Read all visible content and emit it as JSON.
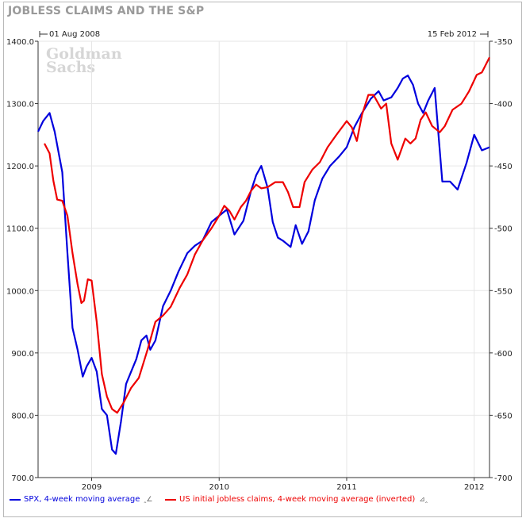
{
  "chart_data": {
    "type": "line",
    "title": "JOBLESS CLAIMS AND THE S&P",
    "watermark": "Goldman Sachs",
    "date_range": {
      "start_label": "01 Aug 2008",
      "end_label": "15 Feb 2012"
    },
    "x_ticks": [
      "2009",
      "2010",
      "2011",
      "2012"
    ],
    "left_axis": {
      "lim": [
        700,
        1400
      ],
      "ticks": [
        "700.0",
        "800.0",
        "900.0",
        "1000.0",
        "1100.0",
        "1200.0",
        "1300.0",
        "1400.0"
      ]
    },
    "right_axis": {
      "lim": [
        -700,
        -350
      ],
      "ticks": [
        "-350",
        "-400",
        "-450",
        "-500",
        "-550",
        "-600",
        "-650",
        "-700"
      ]
    },
    "grid": true,
    "legend_position": "bottom",
    "series": [
      {
        "name": "SPX, 4-week moving average",
        "axis": "left",
        "color": "#0000dd",
        "x": [
          2008.58,
          2008.62,
          2008.67,
          2008.71,
          2008.77,
          2008.81,
          2008.85,
          2008.89,
          2008.93,
          2008.96,
          2009.0,
          2009.04,
          2009.08,
          2009.12,
          2009.16,
          2009.19,
          2009.23,
          2009.27,
          2009.31,
          2009.35,
          2009.39,
          2009.43,
          2009.46,
          2009.5,
          2009.56,
          2009.62,
          2009.68,
          2009.75,
          2009.81,
          2009.87,
          2009.94,
          2010.0,
          2010.06,
          2010.12,
          2010.19,
          2010.25,
          2010.29,
          2010.33,
          2010.38,
          2010.42,
          2010.46,
          2010.5,
          2010.56,
          2010.6,
          2010.65,
          2010.7,
          2010.75,
          2010.81,
          2010.87,
          2010.94,
          2011.0,
          2011.06,
          2011.12,
          2011.19,
          2011.25,
          2011.29,
          2011.35,
          2011.4,
          2011.44,
          2011.48,
          2011.52,
          2011.56,
          2011.6,
          2011.64,
          2011.69,
          2011.75,
          2011.81,
          2011.87,
          2011.94,
          2012.0,
          2012.06,
          2012.12
        ],
        "values": [
          1255,
          1272,
          1285,
          1255,
          1190,
          1060,
          940,
          905,
          862,
          878,
          892,
          870,
          810,
          800,
          745,
          738,
          790,
          850,
          870,
          890,
          920,
          928,
          905,
          920,
          975,
          1000,
          1030,
          1060,
          1072,
          1080,
          1110,
          1120,
          1130,
          1090,
          1112,
          1160,
          1185,
          1200,
          1165,
          1110,
          1085,
          1080,
          1070,
          1105,
          1075,
          1095,
          1145,
          1180,
          1200,
          1215,
          1230,
          1262,
          1285,
          1308,
          1320,
          1305,
          1310,
          1325,
          1340,
          1345,
          1330,
          1300,
          1285,
          1305,
          1325,
          1175,
          1175,
          1162,
          1205,
          1250,
          1225,
          1230
        ]
      },
      {
        "name": "US initial jobless claims, 4-week moving average (inverted)",
        "axis": "right",
        "color": "#ee0000",
        "x": [
          2008.63,
          2008.67,
          2008.7,
          2008.73,
          2008.77,
          2008.81,
          2008.85,
          2008.89,
          2008.92,
          2008.94,
          2008.97,
          2009.0,
          2009.04,
          2009.08,
          2009.12,
          2009.16,
          2009.2,
          2009.25,
          2009.31,
          2009.37,
          2009.44,
          2009.5,
          2009.56,
          2009.62,
          2009.69,
          2009.75,
          2009.81,
          2009.87,
          2009.94,
          2010.0,
          2010.04,
          2010.08,
          2010.12,
          2010.17,
          2010.21,
          2010.25,
          2010.29,
          2010.33,
          2010.38,
          2010.44,
          2010.5,
          2010.54,
          2010.58,
          2010.63,
          2010.67,
          2010.73,
          2010.79,
          2010.85,
          2010.92,
          2011.0,
          2011.04,
          2011.08,
          2011.12,
          2011.17,
          2011.21,
          2011.27,
          2011.31,
          2011.35,
          2011.4,
          2011.46,
          2011.5,
          2011.54,
          2011.58,
          2011.62,
          2011.67,
          2011.73,
          2011.77,
          2011.83,
          2011.9,
          2011.96,
          2012.02,
          2012.06,
          2012.12
        ],
        "values": [
          -432,
          -440,
          -462,
          -477,
          -478,
          -490,
          -520,
          -545,
          -560,
          -558,
          -541,
          -542,
          -575,
          -617,
          -635,
          -645,
          -648,
          -640,
          -628,
          -620,
          -597,
          -575,
          -570,
          -563,
          -548,
          -537,
          -521,
          -510,
          -500,
          -490,
          -482,
          -486,
          -493,
          -483,
          -478,
          -470,
          -465,
          -468,
          -467,
          -463,
          -463,
          -471,
          -483,
          -483,
          -463,
          -453,
          -447,
          -435,
          -425,
          -414,
          -419,
          -430,
          -409,
          -393,
          -393,
          -404,
          -400,
          -432,
          -445,
          -428,
          -432,
          -428,
          -413,
          -407,
          -418,
          -423,
          -418,
          -405,
          -400,
          -390,
          -377,
          -375,
          -363
        ]
      }
    ]
  }
}
